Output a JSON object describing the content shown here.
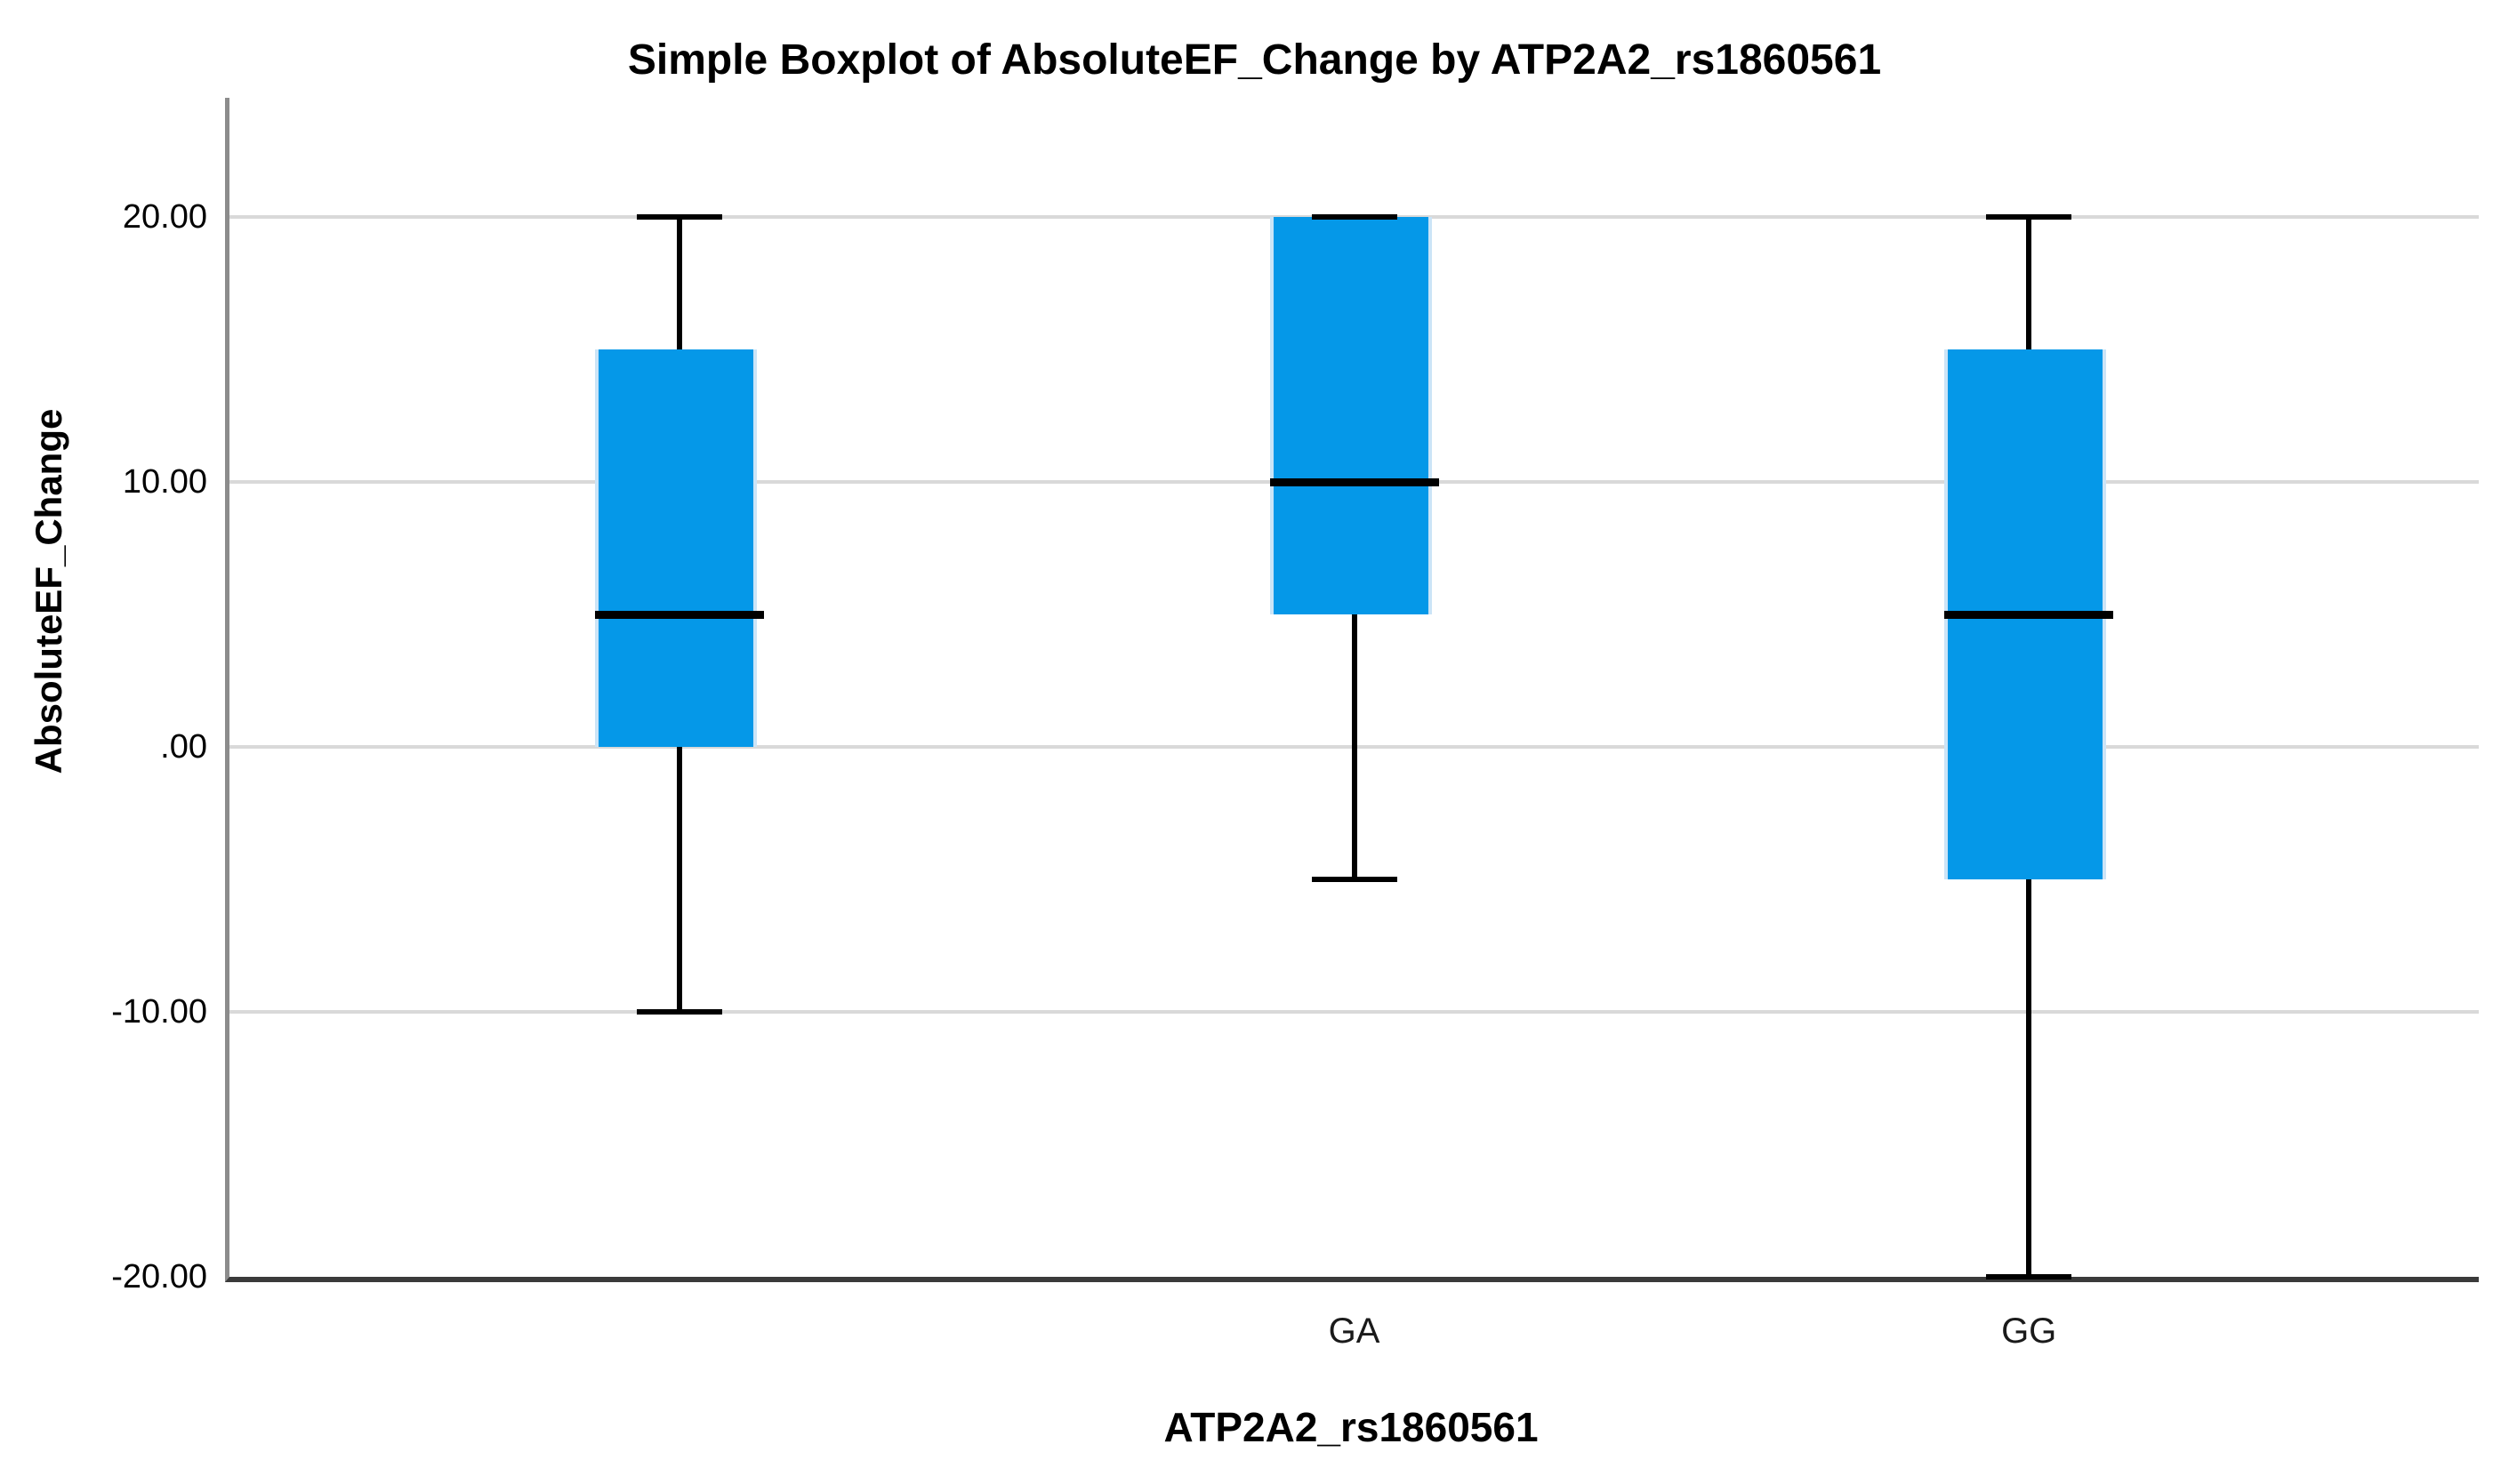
{
  "title": "Simple Boxplot of AbsoluteEF_Change by ATP2A2_rs1860561",
  "x_axis": {
    "title": "ATP2A2_rs1860561",
    "categories": [
      "",
      "GA",
      "GG"
    ]
  },
  "y_axis": {
    "title": "AbsoluteEF_Change",
    "ticks": [
      {
        "value": 20,
        "label": "20.00"
      },
      {
        "value": 10,
        "label": "10.00"
      },
      {
        "value": 0,
        "label": ".00"
      },
      {
        "value": -10,
        "label": "-10.00"
      },
      {
        "value": -20,
        "label": "-20.00"
      }
    ]
  },
  "chart_data": {
    "type": "boxplot",
    "title": "Simple Boxplot of AbsoluteEF_Change by ATP2A2_rs1860561",
    "xlabel": "ATP2A2_rs1860561",
    "ylabel": "AbsoluteEF_Change",
    "ylim": [
      -20,
      24.5
    ],
    "grid": true,
    "categories": [
      "",
      "GA",
      "GG"
    ],
    "series": [
      {
        "category": "",
        "whisker_low": -10,
        "q1": 0,
        "median": 5,
        "q3": 15,
        "whisker_high": 20
      },
      {
        "category": "GA",
        "whisker_low": -5,
        "q1": 5,
        "median": 10,
        "q3": 20,
        "whisker_high": 20
      },
      {
        "category": "GG",
        "whisker_low": -20,
        "q1": -5,
        "median": 5,
        "q3": 15,
        "whisker_high": 20
      }
    ],
    "colors": {
      "box_fill": "#0598E8",
      "box_edge_highlight": "#CBE4F7",
      "median": "#000000",
      "whisker": "#000000",
      "gridline": "#D9D9D9",
      "y_axis_line": "#8C8C8C",
      "x_axis_line": "#3A3A3A"
    }
  }
}
